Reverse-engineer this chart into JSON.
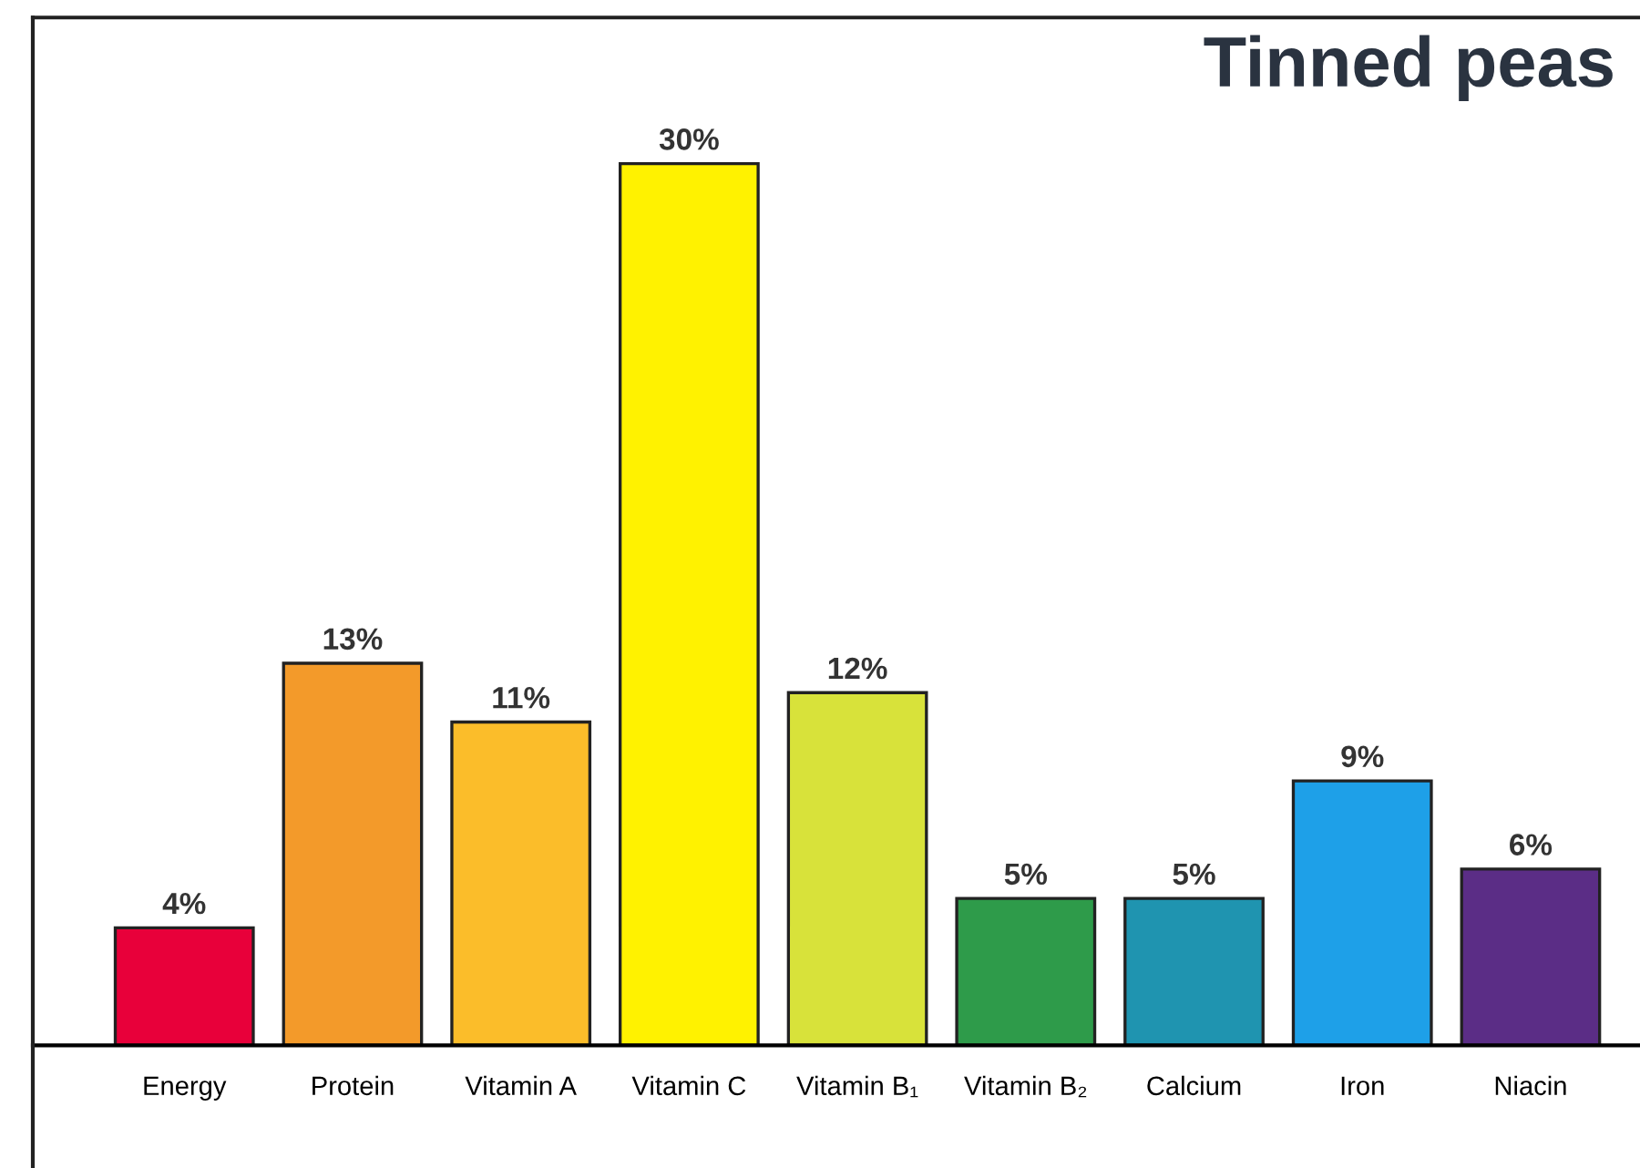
{
  "chart_data": {
    "type": "bar",
    "title": "Tinned peas",
    "categories": [
      "Energy",
      "Protein",
      "Vitamin A",
      "Vitamin C",
      "Vitamin B₁",
      "Vitamin B₂",
      "Calcium",
      "Iron",
      "Niacin"
    ],
    "values": [
      4,
      13,
      11,
      30,
      12,
      5,
      5,
      9,
      6
    ],
    "colors": [
      "#e8003a",
      "#f39a2a",
      "#fbbd2a",
      "#fff200",
      "#d8e23a",
      "#2e9b4a",
      "#1f94b0",
      "#1ea0e8",
      "#5b2d86"
    ],
    "value_labels": [
      "4%",
      "13%",
      "11%",
      "30%",
      "12%",
      "5%",
      "5%",
      "9%",
      "6%"
    ],
    "grid": false,
    "legend": false
  }
}
